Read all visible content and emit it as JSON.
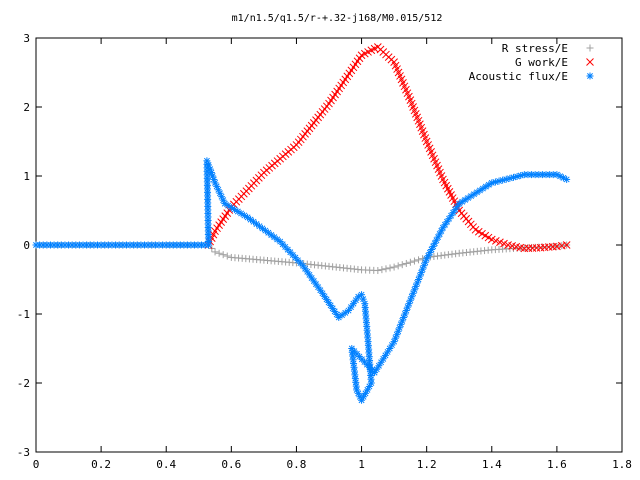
{
  "chart_data": {
    "type": "scatter",
    "title": "m1/n1.5/q1.5/r-+.32-j168/M0.015/512",
    "xlabel": "",
    "ylabel": "",
    "xlim": [
      0,
      1.8
    ],
    "ylim": [
      -3,
      3
    ],
    "xticks": [
      "0",
      "0.2",
      "0.4",
      "0.6",
      "0.8",
      "1",
      "1.2",
      "1.4",
      "1.6",
      "1.8"
    ],
    "yticks": [
      "-3",
      "-2",
      "-1",
      "0",
      "1",
      "2",
      "3"
    ],
    "grid": false,
    "legend_position": "top-right",
    "series": [
      {
        "name": "R stress/E",
        "marker": "plus",
        "color": "#a0a0a0",
        "points": [
          [
            0,
            0
          ],
          [
            0.2,
            0
          ],
          [
            0.4,
            0
          ],
          [
            0.53,
            0
          ],
          [
            0.55,
            -0.1
          ],
          [
            0.6,
            -0.18
          ],
          [
            0.7,
            -0.22
          ],
          [
            0.8,
            -0.26
          ],
          [
            0.9,
            -0.31
          ],
          [
            1.0,
            -0.36
          ],
          [
            1.05,
            -0.37
          ],
          [
            1.1,
            -0.32
          ],
          [
            1.15,
            -0.25
          ],
          [
            1.2,
            -0.18
          ],
          [
            1.3,
            -0.12
          ],
          [
            1.4,
            -0.07
          ],
          [
            1.5,
            -0.04
          ],
          [
            1.6,
            -0.02
          ],
          [
            1.63,
            0
          ]
        ]
      },
      {
        "name": "G work/E",
        "marker": "cross",
        "color": "#ff0000",
        "points": [
          [
            0.53,
            0
          ],
          [
            0.55,
            0.2
          ],
          [
            0.6,
            0.55
          ],
          [
            0.7,
            1.05
          ],
          [
            0.8,
            1.45
          ],
          [
            0.9,
            2.05
          ],
          [
            0.95,
            2.4
          ],
          [
            1.0,
            2.75
          ],
          [
            1.05,
            2.87
          ],
          [
            1.1,
            2.65
          ],
          [
            1.15,
            2.1
          ],
          [
            1.2,
            1.5
          ],
          [
            1.25,
            0.95
          ],
          [
            1.3,
            0.5
          ],
          [
            1.35,
            0.22
          ],
          [
            1.4,
            0.08
          ],
          [
            1.45,
            0
          ],
          [
            1.5,
            -0.05
          ],
          [
            1.55,
            -0.04
          ],
          [
            1.6,
            -0.02
          ],
          [
            1.63,
            0
          ]
        ]
      },
      {
        "name": "Acoustic flux/E",
        "marker": "star",
        "color": "#0080ff",
        "points": [
          [
            0,
            0
          ],
          [
            0.2,
            0
          ],
          [
            0.4,
            0
          ],
          [
            0.53,
            0
          ],
          [
            0.525,
            1.22
          ],
          [
            0.535,
            1.1
          ],
          [
            0.55,
            0.9
          ],
          [
            0.58,
            0.6
          ],
          [
            0.65,
            0.4
          ],
          [
            0.75,
            0.05
          ],
          [
            0.82,
            -0.3
          ],
          [
            0.88,
            -0.7
          ],
          [
            0.93,
            -1.05
          ],
          [
            0.96,
            -0.95
          ],
          [
            0.99,
            -0.75
          ],
          [
            1.0,
            -0.72
          ],
          [
            1.01,
            -0.85
          ],
          [
            1.02,
            -1.4
          ],
          [
            1.03,
            -2.0
          ],
          [
            1.0,
            -2.25
          ],
          [
            0.985,
            -2.1
          ],
          [
            0.97,
            -1.5
          ],
          [
            1.04,
            -1.85
          ],
          [
            1.06,
            -1.7
          ],
          [
            1.1,
            -1.4
          ],
          [
            1.15,
            -0.8
          ],
          [
            1.2,
            -0.2
          ],
          [
            1.25,
            0.25
          ],
          [
            1.3,
            0.6
          ],
          [
            1.4,
            0.9
          ],
          [
            1.5,
            1.02
          ],
          [
            1.6,
            1.02
          ],
          [
            1.63,
            0.95
          ]
        ]
      }
    ]
  }
}
